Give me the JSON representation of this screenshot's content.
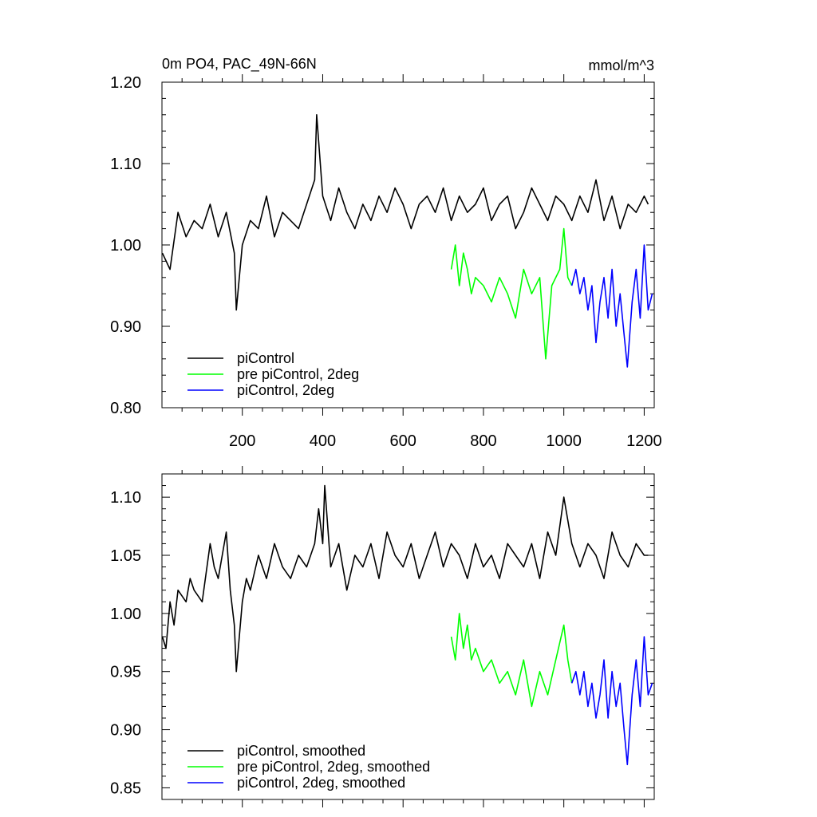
{
  "chart_data": [
    {
      "type": "line",
      "title": "0m PO4, PAC_49N-66N",
      "units": "mmol/m^3",
      "xlim": [
        0,
        1225
      ],
      "ylim": [
        0.8,
        1.2
      ],
      "x_ticks": [
        200,
        400,
        600,
        800,
        1000,
        1200
      ],
      "y_ticks": [
        0.8,
        0.9,
        1.0,
        1.1,
        1.2
      ],
      "y_tick_labels": [
        "0.80",
        "0.90",
        "1.00",
        "1.10",
        "1.20"
      ],
      "legend_position": "bottom-left",
      "series": [
        {
          "name": "piControl",
          "color": "#000000",
          "x": [
            1,
            20,
            40,
            60,
            80,
            100,
            120,
            140,
            160,
            180,
            185,
            200,
            220,
            240,
            260,
            280,
            300,
            320,
            340,
            360,
            380,
            385,
            400,
            420,
            440,
            460,
            480,
            500,
            520,
            540,
            560,
            580,
            600,
            620,
            640,
            660,
            680,
            700,
            720,
            740,
            760,
            780,
            800,
            820,
            840,
            860,
            880,
            900,
            920,
            940,
            960,
            980,
            1000,
            1020,
            1040,
            1060,
            1080,
            1100,
            1120,
            1140,
            1160,
            1180,
            1200,
            1210
          ],
          "values": [
            0.99,
            0.97,
            1.04,
            1.01,
            1.03,
            1.02,
            1.05,
            1.01,
            1.04,
            0.99,
            0.92,
            1.0,
            1.03,
            1.02,
            1.06,
            1.01,
            1.04,
            1.03,
            1.02,
            1.05,
            1.08,
            1.16,
            1.06,
            1.03,
            1.07,
            1.04,
            1.02,
            1.05,
            1.03,
            1.06,
            1.04,
            1.07,
            1.05,
            1.02,
            1.05,
            1.06,
            1.04,
            1.07,
            1.03,
            1.06,
            1.04,
            1.05,
            1.07,
            1.03,
            1.05,
            1.06,
            1.02,
            1.04,
            1.07,
            1.05,
            1.03,
            1.06,
            1.05,
            1.03,
            1.06,
            1.04,
            1.08,
            1.03,
            1.06,
            1.02,
            1.05,
            1.04,
            1.06,
            1.05
          ]
        },
        {
          "name": "pre piControl, 2deg",
          "color": "#00ff00",
          "x": [
            720,
            730,
            740,
            750,
            760,
            770,
            780,
            800,
            820,
            840,
            860,
            880,
            900,
            920,
            940,
            955,
            970,
            990,
            1000,
            1010,
            1020
          ],
          "values": [
            0.97,
            1.0,
            0.95,
            0.99,
            0.97,
            0.94,
            0.96,
            0.95,
            0.93,
            0.96,
            0.94,
            0.91,
            0.97,
            0.94,
            0.96,
            0.86,
            0.95,
            0.97,
            1.02,
            0.96,
            0.95
          ]
        },
        {
          "name": "piControl, 2deg",
          "color": "#0000ff",
          "x": [
            1020,
            1030,
            1040,
            1050,
            1060,
            1070,
            1080,
            1090,
            1100,
            1110,
            1120,
            1130,
            1140,
            1150,
            1158,
            1170,
            1180,
            1190,
            1200,
            1210,
            1220
          ],
          "values": [
            0.95,
            0.97,
            0.94,
            0.96,
            0.92,
            0.95,
            0.88,
            0.93,
            0.96,
            0.91,
            0.97,
            0.9,
            0.94,
            0.89,
            0.85,
            0.93,
            0.97,
            0.91,
            1.0,
            0.92,
            0.94
          ]
        }
      ]
    },
    {
      "type": "line",
      "title": "",
      "xlim": [
        0,
        1225
      ],
      "ylim": [
        0.84,
        1.12
      ],
      "x_ticks": [
        200,
        400,
        600,
        800,
        1000,
        1200
      ],
      "y_ticks": [
        0.85,
        0.9,
        0.95,
        1.0,
        1.05,
        1.1
      ],
      "y_tick_labels": [
        "0.85",
        "0.90",
        "0.95",
        "1.00",
        "1.05",
        "1.10"
      ],
      "legend_position": "bottom-left",
      "series": [
        {
          "name": "piControl, smoothed",
          "color": "#000000",
          "x": [
            1,
            10,
            20,
            30,
            40,
            60,
            70,
            80,
            100,
            120,
            130,
            140,
            160,
            170,
            180,
            185,
            200,
            210,
            220,
            240,
            260,
            280,
            300,
            320,
            340,
            360,
            380,
            390,
            400,
            405,
            420,
            440,
            460,
            480,
            500,
            520,
            540,
            560,
            580,
            600,
            620,
            640,
            660,
            680,
            700,
            720,
            740,
            760,
            780,
            800,
            820,
            840,
            860,
            880,
            900,
            920,
            940,
            960,
            980,
            1000,
            1020,
            1040,
            1060,
            1080,
            1100,
            1120,
            1140,
            1160,
            1180,
            1200,
            1210
          ],
          "values": [
            0.98,
            0.97,
            1.01,
            0.99,
            1.02,
            1.01,
            1.03,
            1.02,
            1.01,
            1.06,
            1.04,
            1.03,
            1.07,
            1.02,
            0.99,
            0.95,
            1.01,
            1.03,
            1.02,
            1.05,
            1.03,
            1.06,
            1.04,
            1.03,
            1.05,
            1.04,
            1.06,
            1.09,
            1.06,
            1.11,
            1.04,
            1.06,
            1.02,
            1.05,
            1.04,
            1.06,
            1.03,
            1.07,
            1.05,
            1.04,
            1.06,
            1.03,
            1.05,
            1.07,
            1.04,
            1.06,
            1.05,
            1.03,
            1.06,
            1.04,
            1.05,
            1.03,
            1.06,
            1.05,
            1.04,
            1.06,
            1.03,
            1.07,
            1.05,
            1.1,
            1.06,
            1.04,
            1.06,
            1.05,
            1.03,
            1.07,
            1.05,
            1.04,
            1.06,
            1.05,
            1.05
          ]
        },
        {
          "name": "pre piControl, 2deg, smoothed",
          "color": "#00ff00",
          "x": [
            720,
            730,
            740,
            750,
            760,
            770,
            780,
            800,
            820,
            840,
            860,
            880,
            900,
            920,
            940,
            960,
            980,
            1000,
            1010,
            1020
          ],
          "values": [
            0.98,
            0.96,
            1.0,
            0.97,
            0.99,
            0.96,
            0.97,
            0.95,
            0.96,
            0.94,
            0.95,
            0.93,
            0.96,
            0.92,
            0.95,
            0.93,
            0.96,
            0.99,
            0.96,
            0.94
          ]
        },
        {
          "name": "piControl, 2deg, smoothed",
          "color": "#0000ff",
          "x": [
            1020,
            1030,
            1040,
            1050,
            1060,
            1070,
            1080,
            1090,
            1100,
            1110,
            1120,
            1130,
            1140,
            1150,
            1158,
            1170,
            1180,
            1190,
            1200,
            1210,
            1220
          ],
          "values": [
            0.94,
            0.95,
            0.93,
            0.95,
            0.92,
            0.94,
            0.91,
            0.93,
            0.96,
            0.91,
            0.95,
            0.92,
            0.94,
            0.9,
            0.87,
            0.93,
            0.96,
            0.92,
            0.98,
            0.93,
            0.94
          ]
        }
      ]
    }
  ]
}
